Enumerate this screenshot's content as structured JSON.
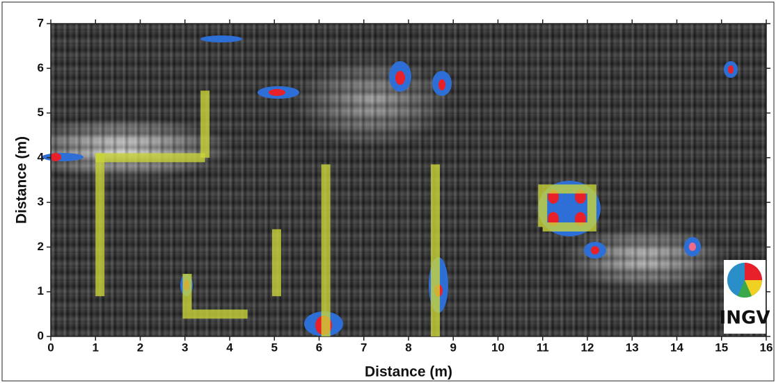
{
  "chart_data": {
    "type": "line",
    "x_label": "Distance (m)",
    "y_label": "Distance (m)",
    "xlim": [
      0,
      16
    ],
    "ylim": [
      0,
      7
    ],
    "xticks": [
      0,
      1,
      2,
      3,
      4,
      5,
      6,
      7,
      8,
      9,
      10,
      11,
      12,
      13,
      14,
      15,
      16
    ],
    "yticks": [
      0,
      1,
      2,
      3,
      4,
      5,
      6,
      7
    ],
    "color": "#c9d43a",
    "series": [
      {
        "x": [
          1.1,
          1.1
        ],
        "values": [
          0.9,
          4.1
        ]
      },
      {
        "x": [
          1.0,
          3.45
        ],
        "values": [
          4.0,
          4.0
        ]
      },
      {
        "x": [
          3.45,
          3.45
        ],
        "values": [
          4.0,
          5.5
        ]
      },
      {
        "x": [
          3.05,
          3.05,
          4.4
        ],
        "values": [
          1.4,
          0.5,
          0.5
        ]
      },
      {
        "x": [
          5.05,
          5.05
        ],
        "values": [
          0.9,
          2.4
        ]
      },
      {
        "x": [
          6.15,
          6.15
        ],
        "values": [
          0,
          3.85
        ]
      },
      {
        "x": [
          8.6,
          8.6
        ],
        "values": [
          0,
          3.85
        ]
      },
      {
        "x": [
          11.0,
          12.1,
          12.1,
          11.0,
          11.0
        ],
        "values": [
          2.45,
          2.45,
          3.3,
          3.3,
          2.45
        ]
      }
    ]
  },
  "logo": "INGV"
}
